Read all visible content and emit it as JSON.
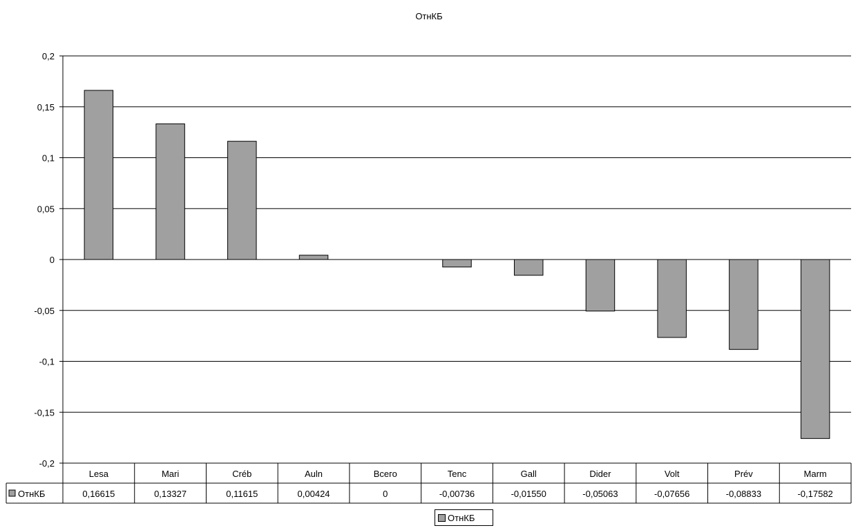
{
  "chart_data": {
    "type": "bar",
    "title": "ОтнКБ",
    "categories": [
      "Lesa",
      "Mari",
      "Créb",
      "Auln",
      "Всего",
      "Tenc",
      "Gall",
      "Dider",
      "Volt",
      "Prév",
      "Marm"
    ],
    "series": [
      {
        "name": "ОтнКБ",
        "values": [
          0.16615,
          0.13327,
          0.11615,
          0.00424,
          0,
          -0.00736,
          -0.0155,
          -0.05063,
          -0.07656,
          -0.08833,
          -0.17582
        ],
        "value_labels": [
          "0,16615",
          "0,13327",
          "0,11615",
          "0,00424",
          "0",
          "-0,00736",
          "-0,01550",
          "-0,05063",
          "-0,07656",
          "-0,08833",
          "-0,17582"
        ],
        "color": "#a0a0a0"
      }
    ],
    "ylim": [
      -0.2,
      0.2
    ],
    "yticks": [
      0.2,
      0.15,
      0.1,
      0.05,
      0,
      -0.05,
      -0.1,
      -0.15,
      -0.2
    ],
    "ytick_labels": [
      "0,2",
      "0,15",
      "0,1",
      "0,05",
      "0",
      "-0,05",
      "-0,1",
      "-0,15",
      "-0,2"
    ],
    "grid": true,
    "legend": {
      "placement": "bottom",
      "label": "ОтнКБ"
    },
    "data_table": true
  }
}
